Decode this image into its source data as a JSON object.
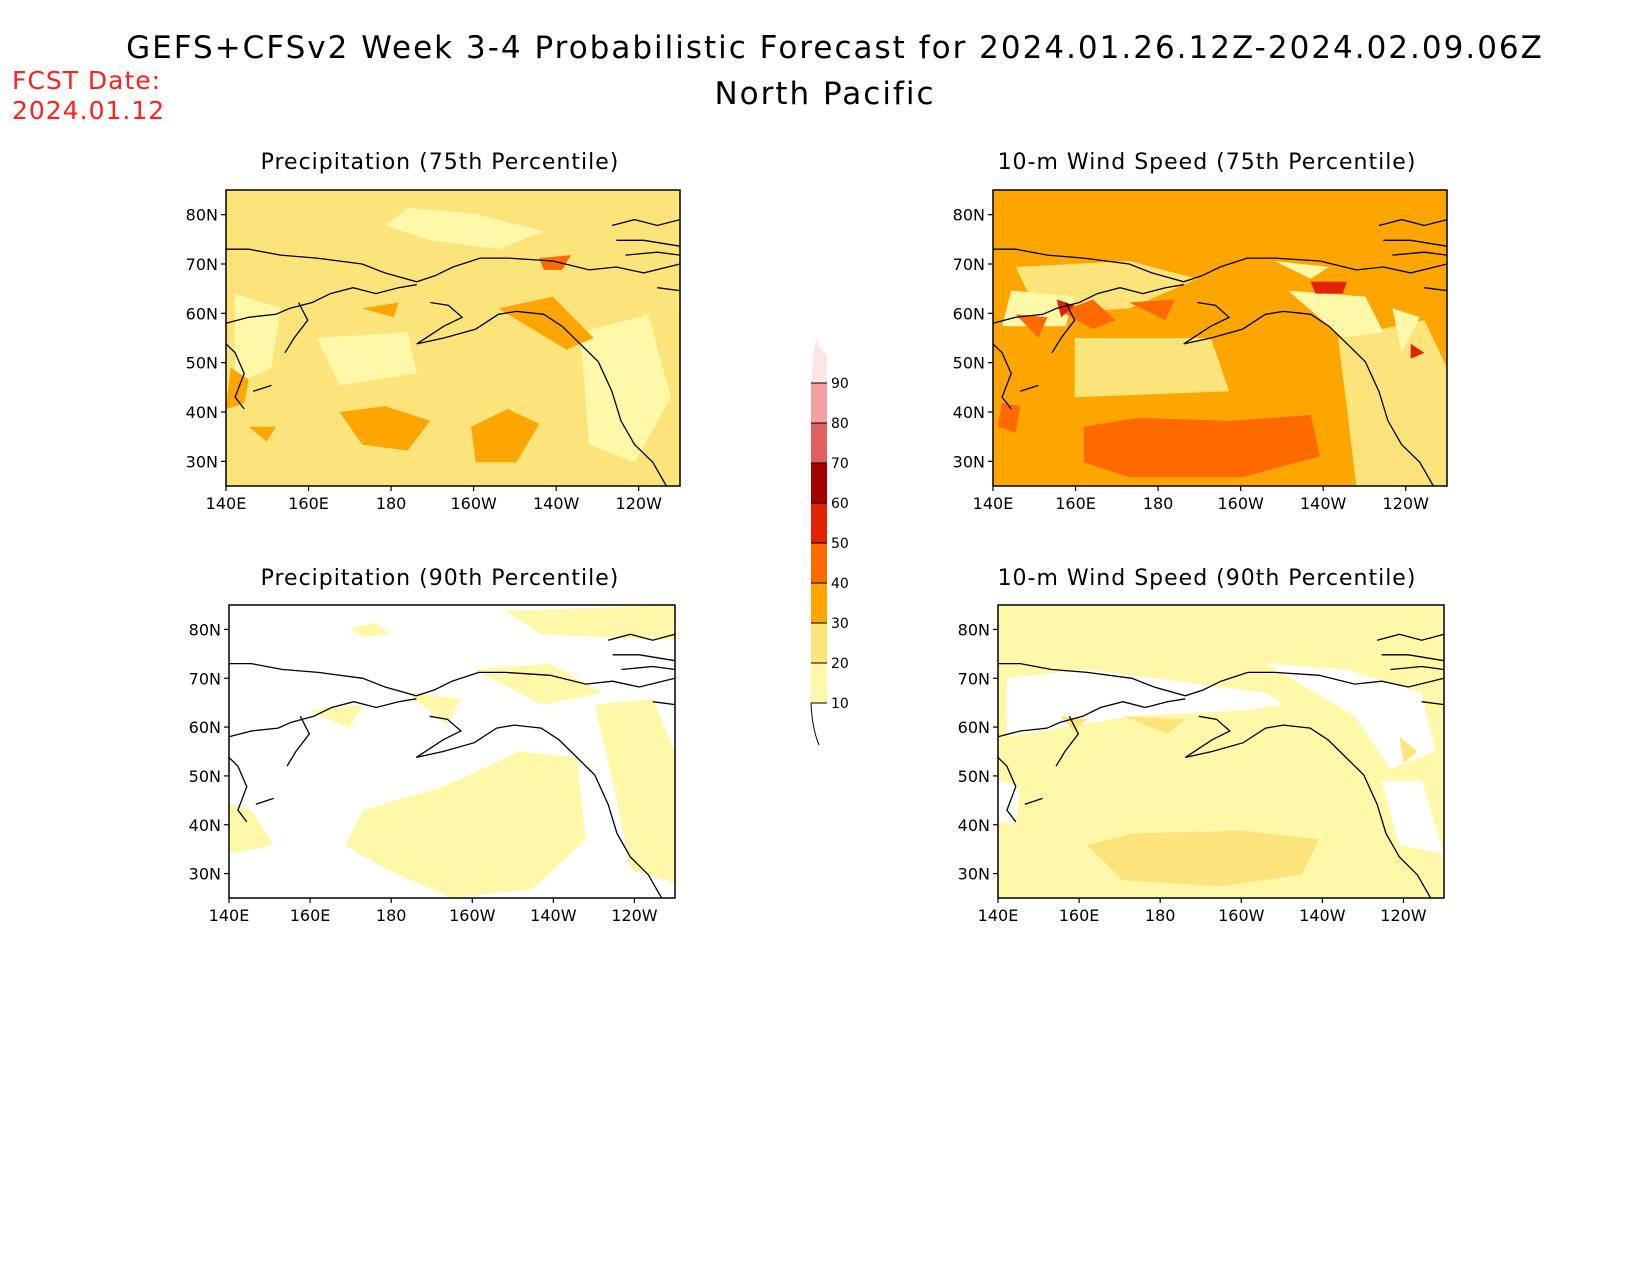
{
  "title": {
    "line1": "GEFS+CFSv2 Week 3-4 Probabilistic Forecast for 2024.01.26.12Z-2024.02.09.06Z",
    "line2": "North Pacific"
  },
  "forecast_date": {
    "label": "FCST Date:",
    "value": "2024.01.12"
  },
  "colors": {
    "c10": "#fff8a8",
    "c20": "#fde47a",
    "c30": "#ffa500",
    "c40": "#ff6a00",
    "c50": "#e32200",
    "c60": "#a50000",
    "c70": "#e06060",
    "c80": "#f5a0a0",
    "c90": "#ffe4e4",
    "coast": "#000000"
  },
  "axes": {
    "lon_ticks": [
      "140E",
      "160E",
      "180",
      "160W",
      "140W",
      "120W"
    ],
    "lat_ticks": [
      "80N",
      "70N",
      "60N",
      "50N",
      "40N",
      "30N"
    ]
  },
  "panels": [
    {
      "title": "Precipitation (75th Percentile)",
      "base_level": 20
    },
    {
      "title": "10-m Wind Speed (75th Percentile)",
      "base_level": 30
    },
    {
      "title": "Precipitation (90th Percentile)",
      "base_level": 0
    },
    {
      "title": "10-m Wind Speed (90th Percentile)",
      "base_level": 10
    }
  ],
  "colorbar": {
    "levels": [
      "10",
      "20",
      "30",
      "40",
      "50",
      "60",
      "70",
      "80",
      "90"
    ]
  }
}
